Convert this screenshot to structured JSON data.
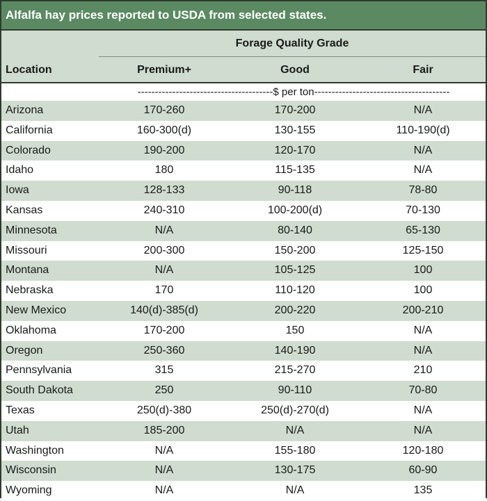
{
  "title": "Alfalfa hay prices reported to USDA from selected states.",
  "table": {
    "group_header": "Forage Quality Grade",
    "location_header": "Location",
    "columns": [
      "Premium+",
      "Good",
      "Fair"
    ],
    "unit_row": "---------------------------------------$ per ton---------------------------------------",
    "rows": [
      {
        "location": "Arizona",
        "premium": "170-260",
        "good": "170-200",
        "fair": "N/A"
      },
      {
        "location": "California",
        "premium": "160-300(d)",
        "good": "130-155",
        "fair": "110-190(d)"
      },
      {
        "location": "Colorado",
        "premium": "190-200",
        "good": "120-170",
        "fair": "N/A"
      },
      {
        "location": "Idaho",
        "premium": "180",
        "good": "115-135",
        "fair": "N/A"
      },
      {
        "location": "Iowa",
        "premium": "128-133",
        "good": "90-118",
        "fair": "78-80"
      },
      {
        "location": "Kansas",
        "premium": "240-310",
        "good": "100-200(d)",
        "fair": "70-130"
      },
      {
        "location": "Minnesota",
        "premium": "N/A",
        "good": "80-140",
        "fair": "65-130"
      },
      {
        "location": "Missouri",
        "premium": "200-300",
        "good": "150-200",
        "fair": "125-150"
      },
      {
        "location": "Montana",
        "premium": "N/A",
        "good": "105-125",
        "fair": "100"
      },
      {
        "location": "Nebraska",
        "premium": "170",
        "good": "110-120",
        "fair": "100"
      },
      {
        "location": "New Mexico",
        "premium": "140(d)-385(d)",
        "good": "200-220",
        "fair": "200-210"
      },
      {
        "location": "Oklahoma",
        "premium": "170-200",
        "good": "150",
        "fair": "N/A"
      },
      {
        "location": "Oregon",
        "premium": "250-360",
        "good": "140-190",
        "fair": "N/A"
      },
      {
        "location": "Pennsylvania",
        "premium": "315",
        "good": "215-270",
        "fair": "210"
      },
      {
        "location": "South Dakota",
        "premium": "250",
        "good": "90-110",
        "fair": "70-80"
      },
      {
        "location": "Texas",
        "premium": "250(d)-380",
        "good": "250(d)-270(d)",
        "fair": "N/A"
      },
      {
        "location": "Utah",
        "premium": "185-200",
        "good": "N/A",
        "fair": "N/A"
      },
      {
        "location": "Washington",
        "premium": "N/A",
        "good": "155-180",
        "fair": "120-180"
      },
      {
        "location": "Wisconsin",
        "premium": "N/A",
        "good": "130-175",
        "fair": "60-90"
      },
      {
        "location": "Wyoming",
        "premium": "N/A",
        "good": "N/A",
        "fair": "135"
      }
    ]
  },
  "colors": {
    "title_bg": "#5b8a62",
    "shaded_row": "#cfdccf",
    "border": "#2f3a2e"
  }
}
